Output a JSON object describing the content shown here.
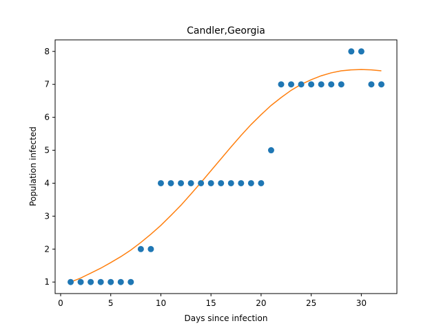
{
  "chart_data": {
    "type": "scatter",
    "title": "Candler,Georgia",
    "xlabel": "Days since infection",
    "ylabel": "Population infected",
    "xlim": [
      -0.55,
      33.55
    ],
    "ylim": [
      0.65,
      8.35
    ],
    "xticks": [
      0,
      5,
      10,
      15,
      20,
      25,
      30
    ],
    "yticks": [
      1,
      2,
      3,
      4,
      5,
      6,
      7,
      8
    ],
    "grid": false,
    "series": [
      {
        "kind": "scatter",
        "color": "#1f77b4",
        "x": [
          1,
          2,
          3,
          4,
          5,
          6,
          7,
          8,
          9,
          10,
          11,
          12,
          13,
          14,
          15,
          16,
          17,
          18,
          19,
          20,
          21,
          22,
          23,
          24,
          25,
          26,
          27,
          28,
          29,
          30,
          31,
          32
        ],
        "y": [
          1,
          1,
          1,
          1,
          1,
          1,
          1,
          2,
          2,
          4,
          4,
          4,
          4,
          4,
          4,
          4,
          4,
          4,
          4,
          4,
          5,
          7,
          7,
          7,
          7,
          7,
          7,
          7,
          8,
          8,
          7,
          7
        ]
      },
      {
        "kind": "line",
        "color": "#ff7f0e",
        "x": [
          1,
          2,
          3,
          4,
          5,
          6,
          7,
          8,
          9,
          10,
          11,
          12,
          13,
          14,
          15,
          16,
          17,
          18,
          19,
          20,
          21,
          22,
          23,
          24,
          25,
          26,
          27,
          28,
          29,
          30,
          31,
          32
        ],
        "y": [
          1.0,
          1.12,
          1.27,
          1.42,
          1.59,
          1.77,
          1.97,
          2.2,
          2.45,
          2.72,
          3.02,
          3.33,
          3.67,
          4.02,
          4.38,
          4.74,
          5.1,
          5.45,
          5.78,
          6.08,
          6.36,
          6.6,
          6.82,
          7.0,
          7.14,
          7.26,
          7.35,
          7.41,
          7.44,
          7.45,
          7.44,
          7.41
        ]
      }
    ]
  }
}
